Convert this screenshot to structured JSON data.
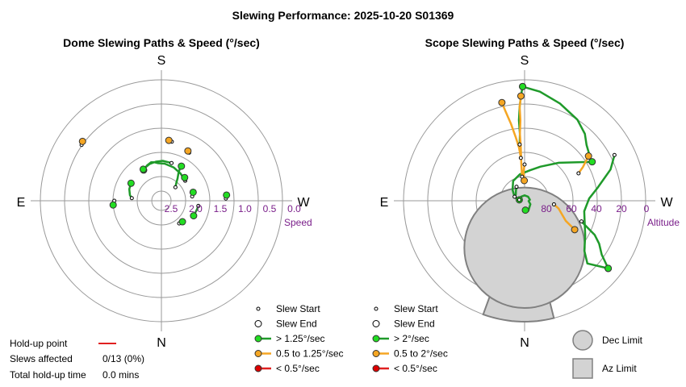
{
  "title": "Slewing Performance: 2025-10-20 S01369",
  "colors": {
    "ring": "#999999",
    "fast": "#1f9a2a",
    "fast_fill": "#22dd22",
    "medium": "#f5a623",
    "medium_fill": "#f5a623",
    "slow": "#e02020",
    "slow_fill": "#dd0000",
    "limit_fill": "#d3d3d3",
    "limit_stroke": "#808080",
    "axis_label": "#7a1f8a"
  },
  "holdup": {
    "point_label": "Hold-up point",
    "slews_label": "Slews affected",
    "slews_value": "0/13 (0%)",
    "time_label": "Total hold-up time",
    "time_value": "0.0 mins"
  },
  "chart_data": [
    {
      "type": "polar-path",
      "title": "Dome Slewing Paths & Speed (°/sec)",
      "cardinals": {
        "top": "S",
        "bottom": "N",
        "left": "E",
        "right": "W"
      },
      "radial_label": "Speed",
      "radial_ticks": [
        "2.5",
        "2.0",
        "1.5",
        "1.0",
        "0.5",
        "0.0"
      ],
      "radial_range": [
        2.5,
        0.0
      ],
      "legend": [
        {
          "kind": "start",
          "label": "Slew Start"
        },
        {
          "kind": "end",
          "label": "Slew End"
        },
        {
          "kind": "fast",
          "label": "> 1.25°/sec"
        },
        {
          "kind": "medium",
          "label": "0.5 to 1.25°/sec"
        },
        {
          "kind": "slow",
          "label": "< 0.5°/sec"
        }
      ],
      "slews": [
        {
          "speed": "fast",
          "path": [
            [
              150,
              1.92
            ],
            [
              158,
              1.86
            ],
            [
              165,
              1.82
            ],
            [
              170,
              1.84
            ],
            [
              175,
              1.87
            ],
            [
              185,
              1.88
            ],
            [
              200,
              1.92
            ],
            [
              215,
              1.97
            ],
            [
              230,
              2.02
            ]
          ],
          "start": [
            230,
            2.02
          ],
          "end": [
            150,
            1.92
          ]
        },
        {
          "speed": "fast",
          "path": [
            [
              210,
              1.82
            ],
            [
              210,
              1.9
            ],
            [
              212,
              2.0
            ],
            [
              216,
              2.1
            ],
            [
              220,
              2.2
            ],
            [
              226,
              2.28
            ]
          ],
          "start": [
            226,
            2.28
          ],
          "end": [
            210,
            1.82
          ]
        },
        {
          "speed": "fast",
          "path": [
            [
              150,
              1.9
            ],
            [
              162,
              1.85
            ],
            [
              172,
              1.83
            ],
            [
              182,
              1.82
            ],
            [
              195,
              1.84
            ]
          ],
          "start": [
            195,
            1.84
          ],
          "end": [
            150,
            1.9
          ]
        },
        {
          "speed": "fast",
          "path": [
            [
              120,
              1.93
            ],
            [
              110,
              1.95
            ],
            [
              100,
              2.0
            ],
            [
              95,
              2.05
            ]
          ],
          "start": [
            95,
            2.05
          ],
          "end": [
            120,
            1.93
          ]
        },
        {
          "speed": "fast",
          "path": [
            [
              255,
              1.98
            ],
            [
              260,
              2.0
            ],
            [
              262,
              2.02
            ]
          ],
          "start": [
            262,
            2.02
          ],
          "end": [
            255,
            1.98
          ]
        },
        {
          "speed": "fast",
          "path": [
            [
              295,
              1.92
            ],
            [
              285,
              1.9
            ],
            [
              278,
              1.88
            ]
          ],
          "start": [
            278,
            1.88
          ],
          "end": [
            295,
            1.92
          ]
        },
        {
          "speed": "fast",
          "path": [
            [
              85,
              1.63
            ],
            [
              90,
              1.66
            ]
          ],
          "start": [
            90,
            1.66
          ],
          "end": [
            85,
            1.63
          ]
        },
        {
          "speed": "fast",
          "path": [
            [
              315,
              2.05
            ],
            [
              322,
              2.07
            ]
          ],
          "start": [
            322,
            2.07
          ],
          "end": [
            315,
            2.05
          ]
        },
        {
          "speed": "fast",
          "path": [
            [
              265,
              1.25
            ],
            [
              268,
              1.27
            ]
          ],
          "start": [
            268,
            1.27
          ],
          "end": [
            265,
            1.25
          ]
        },
        {
          "speed": "fast",
          "path": [
            [
              225,
              1.98
            ],
            [
              228,
              2.0
            ]
          ],
          "start": [
            228,
            2.0
          ],
          "end": [
            225,
            1.98
          ]
        },
        {
          "speed": "medium",
          "path": [
            [
              187,
              1.35
            ],
            [
              190,
              1.37
            ]
          ],
          "start": [
            190,
            1.37
          ],
          "end": [
            187,
            1.35
          ]
        },
        {
          "speed": "medium",
          "path": [
            [
              127,
              0.5
            ],
            [
              125,
              0.53
            ]
          ],
          "start": [
            125,
            0.53
          ],
          "end": [
            127,
            0.5
          ]
        },
        {
          "speed": "medium",
          "path": [
            [
              208,
              1.45
            ],
            [
              210,
              1.47
            ]
          ],
          "start": [
            210,
            1.47
          ],
          "end": [
            208,
            1.45
          ]
        }
      ]
    },
    {
      "type": "polar-path",
      "title": "Scope Slewing Paths & Speed (°/sec)",
      "cardinals": {
        "top": "S",
        "bottom": "N",
        "left": "E",
        "right": "W"
      },
      "radial_label": "Altitude",
      "radial_ticks": [
        "80",
        "60",
        "40",
        "20",
        "0"
      ],
      "radial_range": [
        90,
        0
      ],
      "legend": [
        {
          "kind": "start",
          "label": "Slew Start"
        },
        {
          "kind": "end",
          "label": "Slew End"
        },
        {
          "kind": "fast",
          "label": "> 2°/sec"
        },
        {
          "kind": "medium",
          "label": "0.5 to 2°/sec"
        },
        {
          "kind": "slow",
          "label": "< 0.5°/sec"
        }
      ],
      "limit_legend": [
        {
          "kind": "dec",
          "label": "Dec Limit"
        },
        {
          "kind": "az",
          "label": "Az Limit"
        }
      ],
      "dec_limit": {
        "az": 0,
        "alt": 55,
        "radius_deg": 28
      },
      "az_limit": {
        "az_from": 346,
        "az_to": 20,
        "alt_from": 50,
        "alt_to": 0
      },
      "slews": [
        {
          "speed": "fast",
          "path": [
            [
              179,
              5
            ],
            [
              188,
              8
            ],
            [
              200,
              13
            ],
            [
              213,
              18
            ],
            [
              222,
              23
            ],
            [
              228,
              28
            ],
            [
              235,
              31
            ]
          ],
          "start": [
            235,
            31
          ],
          "end": [
            179,
            5
          ]
        },
        {
          "speed": "fast",
          "path": [
            [
              179,
              5
            ],
            [
              178,
              12
            ],
            [
              177,
              20
            ],
            [
              176,
              30
            ],
            [
              176,
              40
            ],
            [
              175,
              48
            ]
          ],
          "start": [
            175,
            48
          ],
          "end": [
            179,
            5
          ]
        },
        {
          "speed": "fast",
          "path": [
            [
              243,
              15
            ],
            [
              250,
              22
            ],
            [
              260,
              35
            ],
            [
              268,
              42
            ],
            [
              280,
              45
            ],
            [
              300,
              38
            ],
            [
              310,
              32
            ],
            [
              315,
              24
            ],
            [
              309,
              10
            ]
          ],
          "start": [
            243,
            15
          ],
          "end": [
            309,
            10
          ]
        },
        {
          "speed": "fast",
          "path": [
            [
              240,
              32
            ],
            [
              222,
              52
            ],
            [
              205,
              62
            ],
            [
              190,
              67
            ],
            [
              170,
              70
            ],
            [
              150,
              73
            ],
            [
              132,
              78
            ],
            [
              112,
              82
            ]
          ],
          "start": [
            112,
            82
          ],
          "end": [
            240,
            32
          ]
        },
        {
          "speed": "fast",
          "path": [
            [
              150,
              78
            ],
            [
              140,
              80
            ],
            [
              125,
              82
            ],
            [
              112,
              82
            ],
            [
              105,
              84
            ],
            [
              100,
              86
            ]
          ],
          "start": [
            150,
            78
          ],
          "end": [
            100,
            86
          ]
        },
        {
          "speed": "fast",
          "path": [
            [
              290,
              45
            ],
            [
              296,
              32
            ],
            [
              300,
              26
            ],
            [
              305,
              20
            ],
            [
              309,
              10
            ]
          ],
          "start": [
            290,
            45
          ],
          "end": [
            309,
            10
          ]
        },
        {
          "speed": "fast",
          "path": [
            [
              100,
              86
            ],
            [
              140,
              86
            ],
            [
              180,
              86
            ],
            [
              220,
              86
            ],
            [
              260,
              86
            ],
            [
              275,
              87
            ],
            [
              300,
              85
            ],
            [
              340,
              82
            ],
            [
              355,
              83
            ]
          ],
          "start": [
            100,
            86
          ],
          "end": [
            355,
            83
          ]
        },
        {
          "speed": "medium",
          "path": [
            [
              167,
              15
            ],
            [
              168,
              22
            ],
            [
              170,
              32
            ],
            [
              172,
              42
            ],
            [
              174,
              50
            ],
            [
              175,
              58
            ]
          ],
          "start": [
            175,
            58
          ],
          "end": [
            167,
            15
          ]
        },
        {
          "speed": "medium",
          "path": [
            [
              178,
              12
            ],
            [
              177,
              20
            ],
            [
              177,
              30
            ],
            [
              176,
              40
            ],
            [
              176,
              50
            ],
            [
              175,
              62
            ],
            [
              174,
              72
            ]
          ],
          "start": [
            174,
            72
          ],
          "end": [
            178,
            12
          ]
        },
        {
          "speed": "medium",
          "path": [
            [
              235,
              32
            ],
            [
              240,
              40
            ],
            [
              243,
              45
            ]
          ],
          "start": [
            243,
            45
          ],
          "end": [
            235,
            32
          ]
        },
        {
          "speed": "medium",
          "path": [
            [
              300,
              47
            ],
            [
              296,
              56
            ],
            [
              283,
              64
            ],
            [
              277,
              68
            ]
          ],
          "start": [
            277,
            68
          ],
          "end": [
            300,
            47
          ]
        },
        {
          "speed": "medium",
          "path": [
            [
              179,
              75
            ],
            [
              178,
              68
            ],
            [
              180,
              63
            ]
          ],
          "start": [
            180,
            63
          ],
          "end": [
            179,
            75
          ]
        }
      ]
    }
  ]
}
